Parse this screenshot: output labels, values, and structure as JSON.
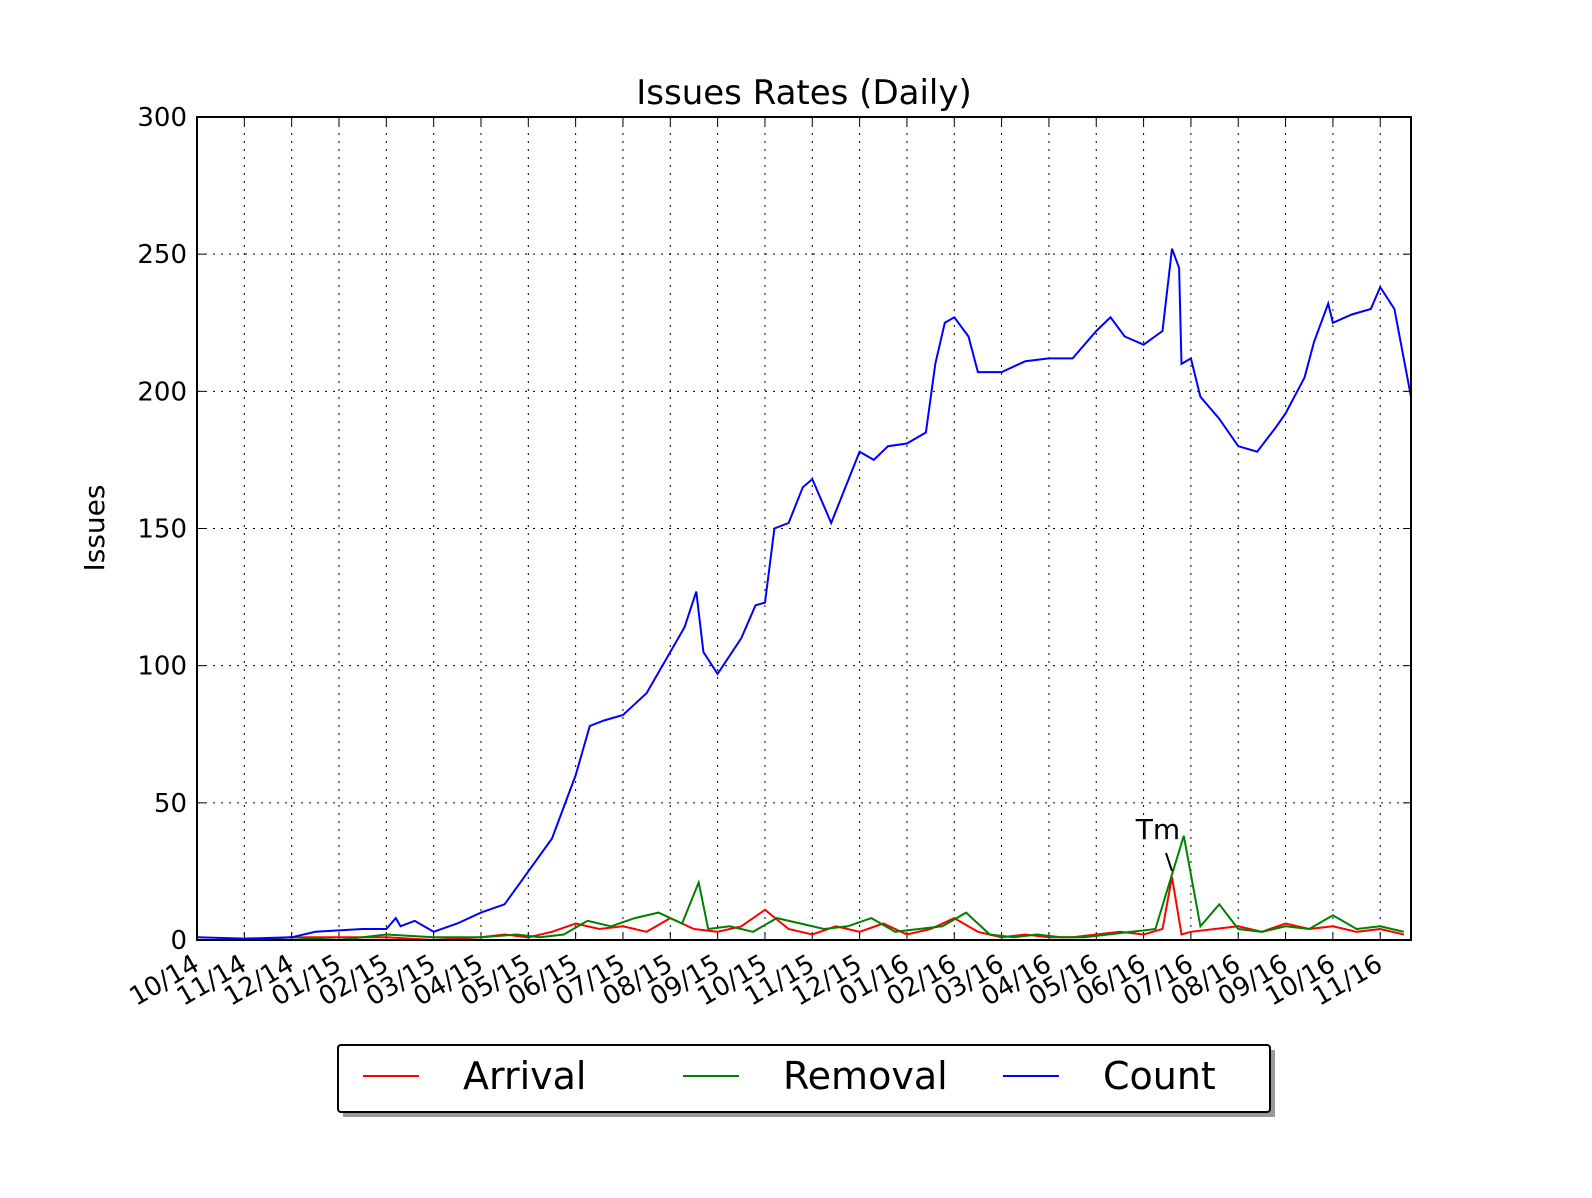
{
  "chart_data": {
    "type": "line",
    "title": "Issues Rates (Daily)",
    "y_label": "Issues",
    "xlim": [
      0,
      25.65
    ],
    "ylim": [
      0,
      300
    ],
    "grid": true,
    "legend": "bottom",
    "yticks": [
      0,
      50,
      100,
      150,
      200,
      250,
      300
    ],
    "xticks": [
      {
        "value": 0,
        "label": "10/14"
      },
      {
        "value": 1,
        "label": "11/14"
      },
      {
        "value": 2,
        "label": "12/14"
      },
      {
        "value": 3,
        "label": "01/15"
      },
      {
        "value": 4,
        "label": "02/15"
      },
      {
        "value": 5,
        "label": "03/15"
      },
      {
        "value": 6,
        "label": "04/15"
      },
      {
        "value": 7,
        "label": "05/15"
      },
      {
        "value": 8,
        "label": "06/15"
      },
      {
        "value": 9,
        "label": "07/15"
      },
      {
        "value": 10,
        "label": "08/15"
      },
      {
        "value": 11,
        "label": "09/15"
      },
      {
        "value": 12,
        "label": "10/15"
      },
      {
        "value": 13,
        "label": "11/15"
      },
      {
        "value": 14,
        "label": "12/15"
      },
      {
        "value": 15,
        "label": "01/16"
      },
      {
        "value": 16,
        "label": "02/16"
      },
      {
        "value": 17,
        "label": "03/16"
      },
      {
        "value": 18,
        "label": "04/16"
      },
      {
        "value": 19,
        "label": "05/16"
      },
      {
        "value": 20,
        "label": "06/16"
      },
      {
        "value": 21,
        "label": "07/16"
      },
      {
        "value": 22,
        "label": "08/16"
      },
      {
        "value": 23,
        "label": "09/16"
      },
      {
        "value": 24,
        "label": "10/16"
      },
      {
        "value": 25,
        "label": "11/16"
      }
    ],
    "annotation": {
      "text": "Tm",
      "x": 20.6,
      "y": 23
    },
    "series": [
      {
        "name": "Arrival",
        "color": "#ff0000",
        "x": [
          0,
          1,
          2,
          3,
          4,
          5,
          6,
          6.5,
          7,
          7.5,
          8,
          8.5,
          9,
          9.5,
          10,
          10.5,
          11,
          11.5,
          12,
          12.5,
          13,
          13.5,
          14,
          14.5,
          15,
          15.5,
          16,
          16.5,
          17,
          17.5,
          18,
          18.5,
          19,
          19.5,
          20,
          20.4,
          20.6,
          20.8,
          21,
          21.5,
          22,
          22.5,
          23,
          23.5,
          24,
          24.5,
          25,
          25.5
        ],
        "values": [
          0,
          0,
          1,
          1,
          1,
          0,
          1,
          2,
          1,
          3,
          6,
          4,
          5,
          3,
          8,
          4,
          3,
          5,
          11,
          4,
          2,
          5,
          3,
          6,
          2,
          4,
          8,
          3,
          1,
          2,
          1,
          1,
          2,
          3,
          2,
          4,
          23,
          2,
          3,
          4,
          5,
          3,
          6,
          4,
          5,
          3,
          4,
          2
        ]
      },
      {
        "name": "Removal",
        "color": "#008000",
        "x": [
          0,
          1,
          2,
          3,
          4,
          5,
          6,
          6.75,
          7.25,
          7.75,
          8.25,
          8.75,
          9.25,
          9.75,
          10.25,
          10.6,
          10.8,
          11.25,
          11.75,
          12.25,
          12.75,
          13.25,
          13.75,
          14.25,
          14.75,
          15.25,
          15.75,
          16.25,
          16.75,
          17.25,
          17.75,
          18.25,
          18.75,
          19.25,
          19.75,
          20.25,
          20.85,
          21.2,
          21.6,
          22,
          22.5,
          23,
          23.5,
          24,
          24.5,
          25,
          25.5
        ],
        "values": [
          0,
          0,
          1,
          0,
          2,
          1,
          1,
          2,
          1,
          2,
          7,
          5,
          8,
          10,
          6,
          21,
          4,
          5,
          3,
          8,
          6,
          4,
          5,
          8,
          3,
          4,
          5,
          10,
          2,
          1,
          2,
          1,
          1,
          2,
          3,
          4,
          38,
          5,
          13,
          4,
          3,
          5,
          4,
          9,
          4,
          5,
          3
        ]
      },
      {
        "name": "Count",
        "color": "#0000ff",
        "x": [
          0,
          1,
          2,
          2.5,
          3,
          3.5,
          4,
          4.2,
          4.3,
          4.6,
          5,
          5.5,
          6,
          6.5,
          7,
          7.5,
          8,
          8.3,
          8.6,
          9,
          9.5,
          10,
          10.3,
          10.55,
          10.7,
          11,
          11.5,
          11.8,
          12,
          12.2,
          12.5,
          12.8,
          13,
          13.4,
          13.7,
          14,
          14.3,
          14.6,
          15,
          15.4,
          15.6,
          15.8,
          16,
          16.3,
          16.5,
          17,
          17.5,
          18,
          18.5,
          19,
          19.3,
          19.6,
          20,
          20.4,
          20.6,
          20.75,
          20.8,
          21,
          21.2,
          21.6,
          22,
          22.4,
          22.8,
          23,
          23.4,
          23.6,
          23.9,
          24,
          24.4,
          24.8,
          25,
          25.3,
          25.65
        ],
        "values": [
          1,
          0.5,
          1,
          3,
          3.5,
          4,
          4,
          8,
          5,
          7,
          3,
          6,
          10,
          13,
          25,
          37,
          60,
          78,
          80,
          82,
          90,
          105,
          114,
          127,
          105,
          97,
          110,
          122,
          123,
          150,
          152,
          165,
          168,
          152,
          165,
          178,
          175,
          180,
          181,
          185,
          210,
          225,
          227,
          220,
          207,
          207,
          211,
          212,
          212,
          222,
          227,
          220,
          217,
          222,
          252,
          245,
          210,
          212,
          198,
          190,
          180,
          178,
          187,
          192,
          205,
          218,
          232,
          225,
          228,
          230,
          238,
          230,
          198
        ]
      }
    ]
  }
}
